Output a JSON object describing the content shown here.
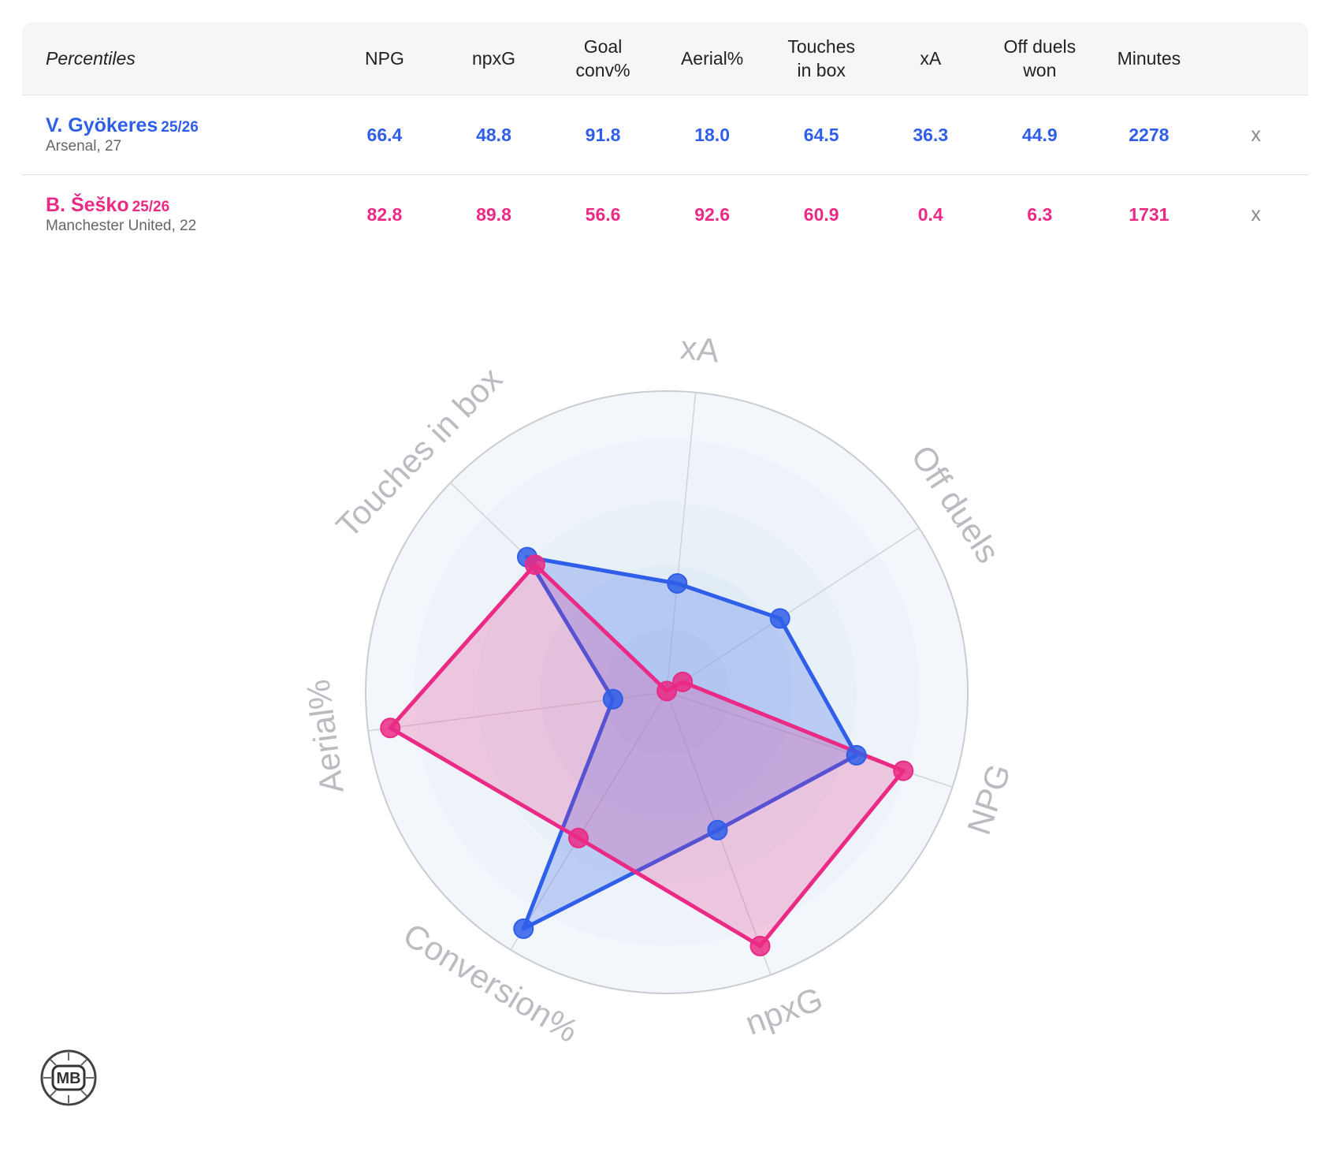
{
  "table": {
    "title": "Percentiles",
    "columns": [
      "NPG",
      "npxG",
      "Goal\nconv%",
      "Aerial%",
      "Touches\nin box",
      "xA",
      "Off duels\nwon",
      "Minutes"
    ],
    "close_label": "x",
    "players": [
      {
        "name": "V. Gyökeres",
        "season": "25/26",
        "team": "Arsenal, 27",
        "color": "#2f5ee8",
        "values": [
          "66.4",
          "48.8",
          "91.8",
          "18.0",
          "64.5",
          "36.3",
          "44.9",
          "2278"
        ]
      },
      {
        "name": "B. Šeško",
        "season": "25/26",
        "team": "Manchester United, 22",
        "color": "#ea2a85",
        "values": [
          "82.8",
          "89.8",
          "56.6",
          "92.6",
          "60.9",
          "0.4",
          "6.3",
          "1731"
        ]
      }
    ]
  },
  "chart_data": {
    "type": "radar",
    "axes": [
      "xA",
      "Off duels",
      "NPG",
      "npxG",
      "Conversion%",
      "Aerial%",
      "Touches in box"
    ],
    "range": [
      0,
      100
    ],
    "series": [
      {
        "name": "V. Gyökeres",
        "color": "#2f5ee8",
        "values": [
          36.3,
          44.9,
          66.4,
          48.8,
          91.8,
          18.0,
          64.5
        ]
      },
      {
        "name": "B. Šeško",
        "color": "#ea2a85",
        "values": [
          0.4,
          6.3,
          82.8,
          89.8,
          56.6,
          92.6,
          60.9
        ]
      }
    ]
  },
  "logo": {
    "text": "MB"
  }
}
